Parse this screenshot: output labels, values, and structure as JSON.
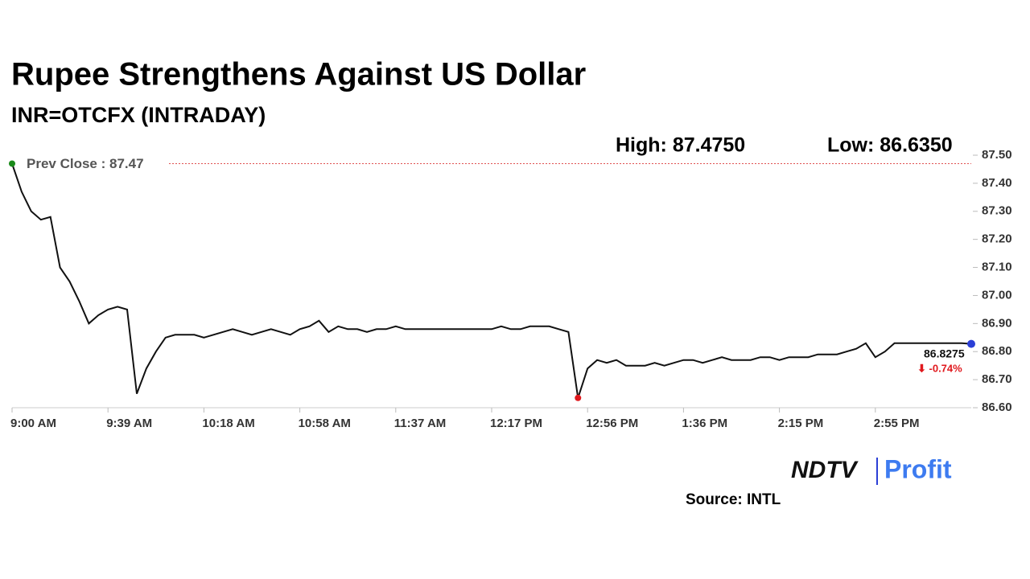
{
  "chart_data": {
    "type": "line",
    "title": "Rupee Strengthens Against US Dollar",
    "subtitle": "INR=OTCFX (INTRADAY)",
    "high_label": "High: 87.4750",
    "low_label": "Low: 86.6350",
    "prev_close": {
      "value": 87.47,
      "label": "Prev Close : 87.47"
    },
    "change_label": "⬇ -0.74%",
    "source": "Source: INTL",
    "brand": [
      "NDTV",
      "Profit"
    ],
    "color": "#111111",
    "start_color": "#1a8a1a",
    "low_color": "#e0191e",
    "end_color": "#2b3fd6",
    "categories": [
      "9:00 AM",
      null,
      null,
      null,
      null,
      null,
      null,
      null,
      null,
      null,
      "9:39 AM",
      null,
      null,
      null,
      null,
      null,
      null,
      null,
      null,
      null,
      "10:18 AM",
      null,
      null,
      null,
      null,
      null,
      null,
      null,
      null,
      null,
      "10:58 AM",
      null,
      null,
      null,
      null,
      null,
      null,
      null,
      null,
      null,
      "11:37 AM",
      null,
      null,
      null,
      null,
      null,
      null,
      null,
      null,
      null,
      "12:17 PM",
      null,
      null,
      null,
      null,
      null,
      null,
      null,
      null,
      null,
      "12:56 PM",
      null,
      null,
      null,
      null,
      null,
      null,
      null,
      null,
      null,
      "1:36 PM",
      null,
      null,
      null,
      null,
      null,
      null,
      null,
      null,
      null,
      "2:15 PM",
      null,
      null,
      null,
      null,
      null,
      null,
      null,
      null,
      null,
      "2:55 PM",
      null,
      null,
      null,
      null,
      null,
      null,
      null,
      null,
      null,
      null
    ],
    "values": [
      87.47,
      87.37,
      87.3,
      87.27,
      87.28,
      87.1,
      87.05,
      86.98,
      86.9,
      86.93,
      86.95,
      86.96,
      86.95,
      86.65,
      86.74,
      86.8,
      86.85,
      86.86,
      86.86,
      86.86,
      86.85,
      86.86,
      86.87,
      86.88,
      86.87,
      86.86,
      86.87,
      86.88,
      86.87,
      86.86,
      86.88,
      86.89,
      86.91,
      86.87,
      86.89,
      86.88,
      86.88,
      86.87,
      86.88,
      86.88,
      86.89,
      86.88,
      86.88,
      86.88,
      86.88,
      86.88,
      86.88,
      86.88,
      86.88,
      86.88,
      86.88,
      86.89,
      86.88,
      86.88,
      86.89,
      86.89,
      86.89,
      86.88,
      86.87,
      86.635,
      86.74,
      86.77,
      86.76,
      86.77,
      86.75,
      86.75,
      86.75,
      86.76,
      86.75,
      86.76,
      86.77,
      86.77,
      86.76,
      86.77,
      86.78,
      86.77,
      86.77,
      86.77,
      86.78,
      86.78,
      86.77,
      86.78,
      86.78,
      86.78,
      86.79,
      86.79,
      86.79,
      86.8,
      86.81,
      86.83,
      86.78,
      86.8,
      86.83,
      86.83,
      86.83,
      86.83,
      86.83,
      86.83,
      86.83,
      86.83,
      86.8275
    ],
    "ylim": [
      86.6,
      87.5
    ],
    "yticks": [
      {
        "value": 86.6,
        "label": "86.60"
      },
      {
        "value": 86.7,
        "label": "86.70"
      },
      {
        "value": 86.8,
        "label": "86.80"
      },
      {
        "value": 86.9,
        "label": "86.90"
      },
      {
        "value": 87.0,
        "label": "87.00"
      },
      {
        "value": 87.1,
        "label": "87.10"
      },
      {
        "value": 87.2,
        "label": "87.20"
      },
      {
        "value": 87.3,
        "label": "87.30"
      },
      {
        "value": 87.4,
        "label": "87.40"
      },
      {
        "value": 87.5,
        "label": "87.50"
      }
    ]
  }
}
